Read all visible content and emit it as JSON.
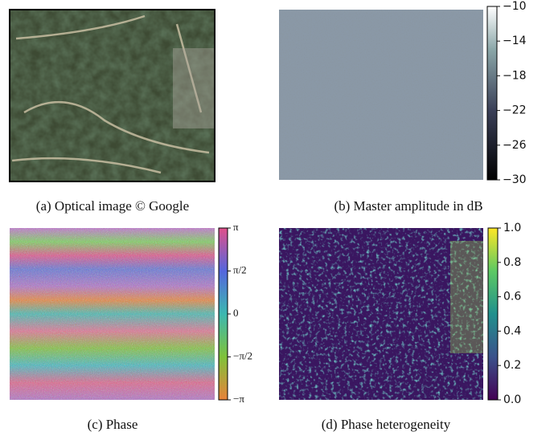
{
  "panels": [
    {
      "caption": "(a) Optical image © Google"
    },
    {
      "caption": "(b) Master amplitude in dB",
      "colorbar": {
        "lim": [
          -30,
          -10
        ],
        "ticks": [
          {
            "value": -10,
            "label": "−10"
          },
          {
            "value": -14,
            "label": "−14"
          },
          {
            "value": -18,
            "label": "−18"
          },
          {
            "value": -22,
            "label": "−22"
          },
          {
            "value": -26,
            "label": "−26"
          },
          {
            "value": -30,
            "label": "−30"
          }
        ]
      }
    },
    {
      "caption": "(c) Phase",
      "colorbar": {
        "lim": [
          -3.14159,
          3.14159
        ],
        "ticks": [
          {
            "value": 3.14159,
            "label": "π"
          },
          {
            "value": 1.5708,
            "label": "π/2"
          },
          0,
          {
            "value": -1.5708,
            "label": "−π/2"
          },
          {
            "value": -3.14159,
            "label": "−π"
          }
        ]
      }
    },
    {
      "caption": "(d) Phase heterogeneity",
      "colorbar": {
        "lim": [
          0,
          1
        ],
        "ticks": [
          {
            "value": 1,
            "label": "1.0"
          },
          {
            "value": 0.8,
            "label": "0.8"
          },
          {
            "value": 0.6,
            "label": "0.6"
          },
          {
            "value": 0.4,
            "label": "0.4"
          },
          {
            "value": 0.2,
            "label": "0.2"
          },
          {
            "value": 0,
            "label": "0.0"
          }
        ]
      }
    }
  ]
}
